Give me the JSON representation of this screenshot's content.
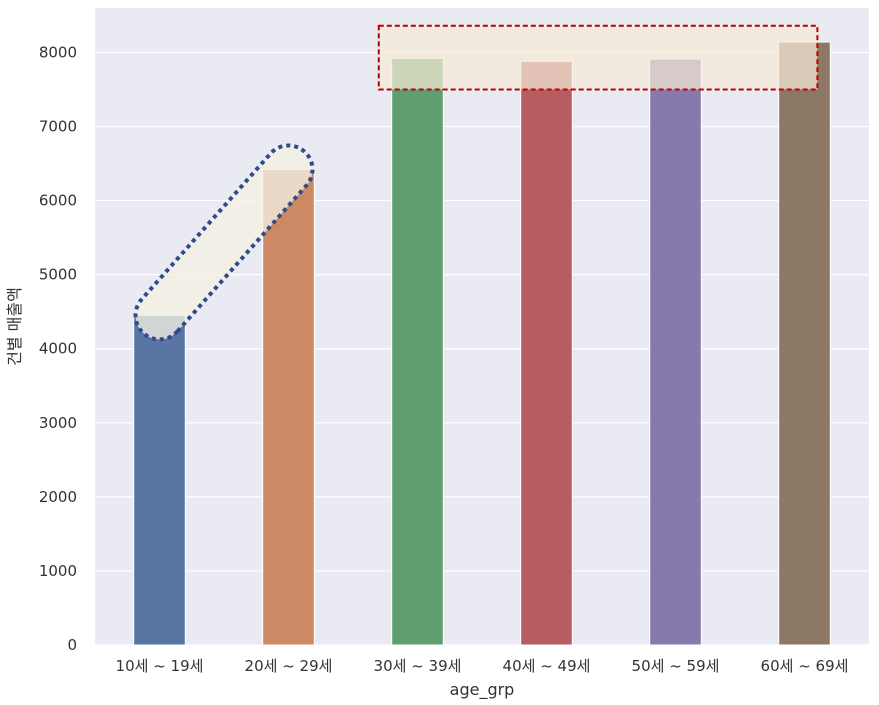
{
  "chart_data": {
    "type": "bar",
    "xlabel": "age_grp",
    "ylabel": "건별 매출액",
    "categories": [
      "10세 ~ 19세",
      "20세 ~ 29세",
      "30세 ~ 39세",
      "40세 ~ 49세",
      "50세 ~ 59세",
      "60세 ~ 69세"
    ],
    "values": [
      4450,
      6420,
      7920,
      7880,
      7910,
      8140
    ],
    "bar_colors": [
      "#5875a4",
      "#cc8963",
      "#5f9e6e",
      "#b55d60",
      "#857aab",
      "#8d7866"
    ],
    "ylim": [
      0,
      8600
    ],
    "yticks": [
      0,
      1000,
      2000,
      3000,
      4000,
      5000,
      6000,
      7000,
      8000
    ],
    "grid": true,
    "background_color": "#eaeaf2",
    "annotations": [
      {
        "type": "dotted-capsule",
        "color": "#2f4b8a",
        "from_category": 0,
        "to_category": 1,
        "from_value": 4450,
        "to_value": 6420
      },
      {
        "type": "dashed-rectangle",
        "color": "#c00000",
        "from_category": 2,
        "to_category": 5,
        "value_range": [
          7500,
          8360
        ]
      }
    ]
  }
}
